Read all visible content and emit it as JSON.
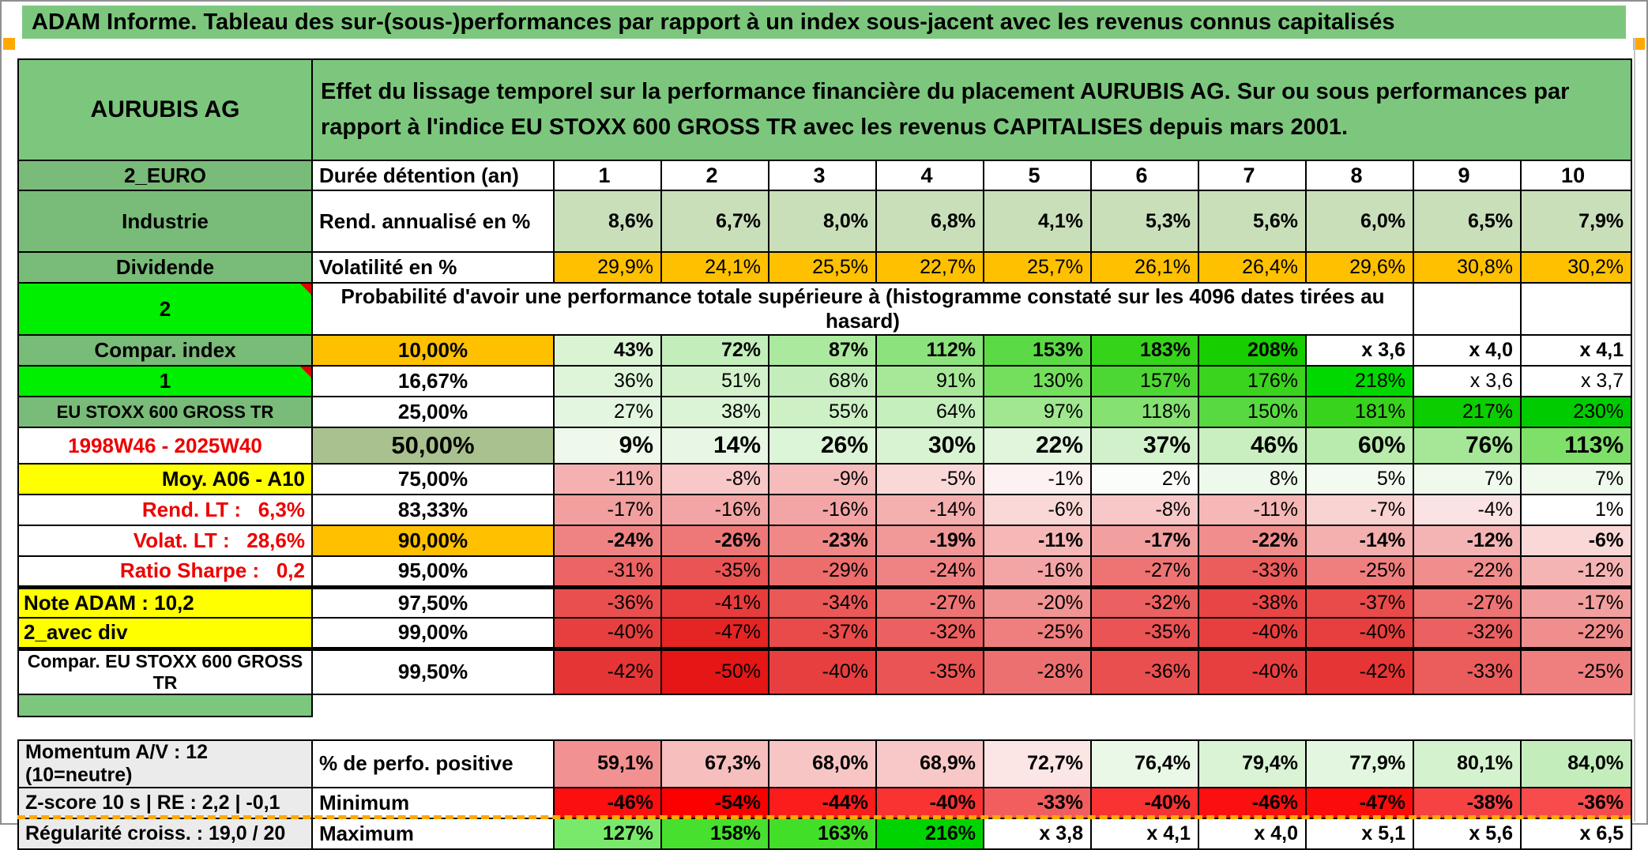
{
  "title": "ADAM Informe. Tableau des sur-(sous-)performances par rapport à un index sous-jacent avec les revenus connus capitalisés",
  "header": {
    "security_name": "AURUBIS AG",
    "description": "Effet du lissage temporel sur la performance financière du placement AURUBIS AG. Sur ou sous performances par rapport à l'indice EU STOXX 600 GROSS TR avec les revenus CAPITALISES depuis mars 2001."
  },
  "colors": {
    "title_green": "#7CC77D",
    "label_green": "#79BB78",
    "bright_green": "#00EE00",
    "orange": "#FFC000",
    "yellow": "#FFFF00",
    "sage": "#A9C18E",
    "gray_label": "#EBEBEB",
    "red_text": "#EC0000",
    "page_break_orange": "#FFA800"
  },
  "grid": {
    "rows": [
      {
        "kind": "years",
        "left": "2_EURO",
        "leftStyle": "green",
        "mid": "Durée détention (an)",
        "midStyle": "left",
        "cells": [
          "1",
          "2",
          "3",
          "4",
          "5",
          "6",
          "7",
          "8",
          "9",
          "10"
        ]
      },
      {
        "kind": "tall",
        "left": "Industrie",
        "leftStyle": "green",
        "mid": "Rend. annualisé en %",
        "midStyle": "left",
        "bold": true,
        "cells": [
          "8,6%",
          "6,7%",
          "8,0%",
          "6,8%",
          "4,1%",
          "5,3%",
          "5,6%",
          "6,0%",
          "6,5%",
          "7,9%"
        ],
        "bgs": [
          "#C9DFBA",
          "#C9DFBA",
          "#C9DFBA",
          "#C9DFBA",
          "#C9DFBA",
          "#C9DFBA",
          "#C9DFBA",
          "#C9DFBA",
          "#C9DFBA",
          "#C9DFBA"
        ]
      },
      {
        "kind": "row",
        "left": "Dividende",
        "leftStyle": "green",
        "mid": "Volatilité en %",
        "midStyle": "left",
        "cells": [
          "29,9%",
          "24,1%",
          "25,5%",
          "22,7%",
          "25,7%",
          "26,1%",
          "26,4%",
          "29,6%",
          "30,8%",
          "30,2%"
        ],
        "bgs": [
          "#FFC000",
          "#FFC000",
          "#FFC000",
          "#FFC000",
          "#FFC000",
          "#FFC000",
          "#FFC000",
          "#FFC000",
          "#FFC000",
          "#FFC000"
        ]
      },
      {
        "kind": "note",
        "left": "2",
        "leftStyle": "bright",
        "marker": true,
        "text": "Probabilité d'avoir une performance totale supérieure à (histogramme constaté sur les 4096 dates tirées au hasard)"
      },
      {
        "kind": "row",
        "left": "Compar. index",
        "leftStyle": "green",
        "mid": "10,00%",
        "midStyle": "orange",
        "bold": true,
        "cells": [
          "43%",
          "72%",
          "87%",
          "112%",
          "153%",
          "183%",
          "208%",
          "x 3,6",
          "x 4,0",
          "x 4,1"
        ],
        "bgs": [
          "#D9F3D3",
          "#C3EEBB",
          "#ABE99F",
          "#8CE37D",
          "#5BDA45",
          "#35D31A",
          "#17CE00",
          "#FFFFFF",
          "#FFFFFF",
          "#FFFFFF"
        ]
      },
      {
        "kind": "row",
        "left": "1",
        "leftStyle": "bright",
        "marker": true,
        "mid": "16,67%",
        "cells": [
          "36%",
          "51%",
          "68%",
          "91%",
          "130%",
          "157%",
          "176%",
          "218%",
          "x 3,6",
          "x 3,7"
        ],
        "bgs": [
          "#DEF5DA",
          "#D3F2CC",
          "#C3EEBB",
          "#A7E898",
          "#74DF5D",
          "#4DD733",
          "#3AD31E",
          "#00D800",
          "#FFFFFF",
          "#FFFFFF"
        ]
      },
      {
        "kind": "row",
        "left": "EU STOXX 600 GROSS TR",
        "leftStyle": "green-s",
        "mid": "25,00%",
        "cells": [
          "27%",
          "38%",
          "55%",
          "64%",
          "97%",
          "118%",
          "150%",
          "181%",
          "217%",
          "230%"
        ],
        "bgs": [
          "#E3F6E0",
          "#DAF4D5",
          "#CDF0C5",
          "#C5EFBC",
          "#A0E78F",
          "#85E271",
          "#58D941",
          "#38D31C",
          "#0BCD00",
          "#00CB00"
        ]
      },
      {
        "kind": "big",
        "left": "1998W46 - 2025W40",
        "leftStyle": "redp",
        "mid": "50,00%",
        "midStyle": "sage",
        "bold": true,
        "cells": [
          "9%",
          "14%",
          "26%",
          "30%",
          "22%",
          "37%",
          "46%",
          "60%",
          "76%",
          "113%"
        ],
        "bgs": [
          "#EEF9EC",
          "#E8F7E5",
          "#DCF4D7",
          "#D8F3D2",
          "#E0F5DC",
          "#D1F1CA",
          "#C9EFC0",
          "#B9EBAD",
          "#A6E797",
          "#7FE069"
        ]
      },
      {
        "kind": "row",
        "left": "Moy. A06 - A10",
        "leftStyle": "yellow-r",
        "mid": "75,00%",
        "cells": [
          "-11%",
          "-8%",
          "-9%",
          "-5%",
          "-1%",
          "2%",
          "8%",
          "5%",
          "7%",
          "7%"
        ],
        "bgs": [
          "#F5B1B1",
          "#F8C8C8",
          "#F6BBBB",
          "#FAD8D8",
          "#FDF1F1",
          "#FBFDFA",
          "#EDF9EA",
          "#F3FBF1",
          "#EFFAED",
          "#EFFAED"
        ]
      },
      {
        "kind": "row",
        "left": "Rend. LT :   6,3%",
        "leftStyle": "redlab",
        "mid": "83,33%",
        "cells": [
          "-17%",
          "-16%",
          "-16%",
          "-14%",
          "-6%",
          "-8%",
          "-11%",
          "-7%",
          "-4%",
          "1%"
        ],
        "bgs": [
          "#F29F9F",
          "#F3A5A5",
          "#F3A5A5",
          "#F4AFAF",
          "#FAD8D8",
          "#F8C8C8",
          "#F6B7B7",
          "#F9D2D2",
          "#FBE3E3",
          "#FEFFFE"
        ]
      },
      {
        "kind": "row",
        "left": "Volat. LT :   28,6%",
        "leftStyle": "redlab",
        "mid": "90,00%",
        "midStyle": "orange",
        "bold": true,
        "cells": [
          "-24%",
          "-26%",
          "-23%",
          "-19%",
          "-11%",
          "-17%",
          "-22%",
          "-14%",
          "-12%",
          "-6%"
        ],
        "bgs": [
          "#EF8383",
          "#EE7878",
          "#F08888",
          "#F19898",
          "#F6B7B7",
          "#F29F9F",
          "#F08D8D",
          "#F4AFAF",
          "#F5B4B4",
          "#FAD8D8"
        ]
      },
      {
        "kind": "row",
        "left": "Ratio Sharpe :   0,2",
        "leftStyle": "redlab",
        "mid": "95,00%",
        "cells": [
          "-31%",
          "-35%",
          "-29%",
          "-24%",
          "-16%",
          "-27%",
          "-33%",
          "-25%",
          "-22%",
          "-12%"
        ],
        "bgs": [
          "#EC6464",
          "#EA5454",
          "#ED6C6C",
          "#EF8383",
          "#F3A5A5",
          "#EE7474",
          "#EB5C5C",
          "#EF7E7E",
          "#F08D8D",
          "#F5B4B4"
        ]
      },
      {
        "kind": "row",
        "thick": true,
        "left": "Note ADAM : 10,2",
        "leftStyle": "yellow-l",
        "mid": "97,50%",
        "cells": [
          "-36%",
          "-41%",
          "-34%",
          "-27%",
          "-20%",
          "-32%",
          "-38%",
          "-37%",
          "-27%",
          "-17%"
        ],
        "bgs": [
          "#E94F4F",
          "#E73C3C",
          "#EA5858",
          "#EE7474",
          "#F19494",
          "#EB6060",
          "#E84646",
          "#E94A4A",
          "#EE7474",
          "#F29F9F"
        ]
      },
      {
        "kind": "row",
        "left": "2_avec div",
        "leftStyle": "yellow-l",
        "mid": "99,00%",
        "cells": [
          "-40%",
          "-47%",
          "-37%",
          "-32%",
          "-25%",
          "-35%",
          "-40%",
          "-40%",
          "-32%",
          "-22%"
        ],
        "bgs": [
          "#E73F3F",
          "#E52424",
          "#E94A4A",
          "#EB6060",
          "#EF7E7E",
          "#EA5454",
          "#E73F3F",
          "#E73F3F",
          "#EB6060",
          "#F08D8D"
        ]
      },
      {
        "kind": "row",
        "thick": true,
        "left": "Compar. EU STOXX 600 GROSS TR",
        "leftStyle": "plain-s",
        "mid": "99,50%",
        "cells": [
          "-42%",
          "-50%",
          "-40%",
          "-35%",
          "-28%",
          "-36%",
          "-40%",
          "-42%",
          "-33%",
          "-25%"
        ],
        "bgs": [
          "#E63535",
          "#E41616",
          "#E73F3F",
          "#EA5454",
          "#ED7070",
          "#E94F4F",
          "#E73F3F",
          "#E63535",
          "#EB5C5C",
          "#EF7E7E"
        ]
      },
      {
        "kind": "sep"
      },
      {
        "kind": "gap"
      },
      {
        "kind": "row",
        "left": "Momentum A/V : 12 (10=neutre)",
        "leftStyle": "gray",
        "mid": "% de perfo. positive",
        "midStyle": "left",
        "bold": true,
        "cells": [
          "59,1%",
          "67,3%",
          "68,0%",
          "68,9%",
          "72,7%",
          "76,4%",
          "79,4%",
          "77,9%",
          "80,1%",
          "84,0%"
        ],
        "bgs": [
          "#F29191",
          "#F7BEBE",
          "#F8C5C5",
          "#F8C8C8",
          "#FCE5E5",
          "#EAF8E7",
          "#D9F3D4",
          "#E3F6DF",
          "#D4F2CE",
          "#C3EEBB"
        ]
      },
      {
        "kind": "row",
        "left": "Z-score 10 s | RE : 2,2 | -0,1",
        "leftStyle": "gray",
        "mid": "Minimum",
        "midStyle": "left",
        "bold": true,
        "cells": [
          "-46%",
          "-54%",
          "-44%",
          "-40%",
          "-33%",
          "-40%",
          "-46%",
          "-47%",
          "-38%",
          "-36%"
        ],
        "bgs": [
          "#FC0F0F",
          "#FC0000",
          "#FB1C1C",
          "#F93232",
          "#F25D5D",
          "#F93232",
          "#FC0F0F",
          "#FC0B0B",
          "#F74242",
          "#F84C4C"
        ]
      },
      {
        "kind": "row",
        "left": "Régularité croiss. : 19,0 / 20",
        "leftStyle": "gray",
        "mid": "Maximum",
        "midStyle": "left",
        "bold": true,
        "cells": [
          "127%",
          "158%",
          "163%",
          "216%",
          "x 3,8",
          "x 4,1",
          "x 4,0",
          "x 5,1",
          "x 5,6",
          "x 6,5"
        ],
        "bgs": [
          "#79E96B",
          "#47E02F",
          "#42DF29",
          "#00D400",
          "#FFFFFF",
          "#FFFFFF",
          "#FFFFFF",
          "#FFFFFF",
          "#FFFFFF",
          "#FFFFFF"
        ]
      }
    ]
  }
}
